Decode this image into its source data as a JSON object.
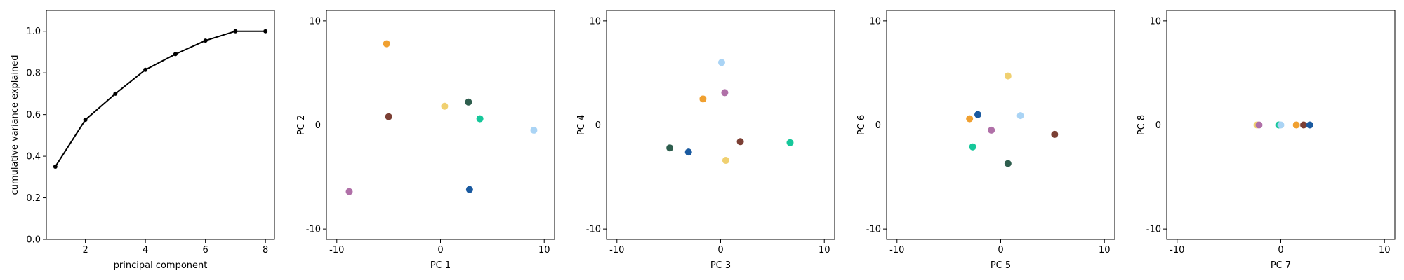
{
  "chart_data": [
    {
      "type": "line",
      "title": "",
      "xlabel": "principal component",
      "ylabel": "cumulative variance explained",
      "xlim": [
        0.7,
        8.3
      ],
      "ylim": [
        0.0,
        1.1
      ],
      "xticks": [
        2,
        4,
        6,
        8
      ],
      "yticks": [
        0.0,
        0.2,
        0.4,
        0.6,
        0.8,
        1.0
      ],
      "x": [
        1,
        2,
        3,
        4,
        5,
        6,
        7,
        8
      ],
      "y": [
        0.35,
        0.575,
        0.7,
        0.815,
        0.89,
        0.955,
        1.0,
        1.0
      ],
      "line_color": "#000000",
      "grid": false
    },
    {
      "type": "scatter",
      "xlabel": "PC 1",
      "ylabel": "PC 2",
      "xlim": [
        -11,
        11
      ],
      "ylim": [
        -11,
        11
      ],
      "xticks": [
        -10,
        0,
        10
      ],
      "yticks": [
        -10,
        0,
        10
      ],
      "points": [
        {
          "x": -5.2,
          "y": 7.8,
          "color": "#f0a030"
        },
        {
          "x": -5.0,
          "y": 0.8,
          "color": "#7b3f34"
        },
        {
          "x": 0.4,
          "y": 1.8,
          "color": "#f0d070"
        },
        {
          "x": 2.7,
          "y": 2.2,
          "color": "#2e5e4e"
        },
        {
          "x": 3.8,
          "y": 0.6,
          "color": "#16c79a"
        },
        {
          "x": 9.0,
          "y": -0.5,
          "color": "#aad4f5"
        },
        {
          "x": -8.8,
          "y": -6.4,
          "color": "#b070a8"
        },
        {
          "x": 2.8,
          "y": -6.2,
          "color": "#1a5aa0"
        }
      ],
      "grid": false
    },
    {
      "type": "scatter",
      "xlabel": "PC 3",
      "ylabel": "PC 4",
      "xlim": [
        -11,
        11
      ],
      "ylim": [
        -11,
        11
      ],
      "xticks": [
        -10,
        0,
        10
      ],
      "yticks": [
        -10,
        0,
        10
      ],
      "points": [
        {
          "x": 0.1,
          "y": 6.0,
          "color": "#aad4f5"
        },
        {
          "x": 0.4,
          "y": 3.1,
          "color": "#b070a8"
        },
        {
          "x": -1.7,
          "y": 2.5,
          "color": "#f0a030"
        },
        {
          "x": -4.9,
          "y": -2.2,
          "color": "#2e5e4e"
        },
        {
          "x": -3.1,
          "y": -2.6,
          "color": "#1a5aa0"
        },
        {
          "x": 1.9,
          "y": -1.6,
          "color": "#7b3f34"
        },
        {
          "x": 6.7,
          "y": -1.7,
          "color": "#16c79a"
        },
        {
          "x": 0.5,
          "y": -3.4,
          "color": "#f0d070"
        }
      ],
      "grid": false
    },
    {
      "type": "scatter",
      "xlabel": "PC 5",
      "ylabel": "PC 6",
      "xlim": [
        -11,
        11
      ],
      "ylim": [
        -11,
        11
      ],
      "xticks": [
        -10,
        0,
        10
      ],
      "yticks": [
        -10,
        0,
        10
      ],
      "points": [
        {
          "x": 0.7,
          "y": 4.7,
          "color": "#f0d070"
        },
        {
          "x": -2.2,
          "y": 1.0,
          "color": "#1a5aa0"
        },
        {
          "x": -3.0,
          "y": 0.6,
          "color": "#f0a030"
        },
        {
          "x": 1.9,
          "y": 0.9,
          "color": "#aad4f5"
        },
        {
          "x": -0.9,
          "y": -0.5,
          "color": "#b070a8"
        },
        {
          "x": 5.2,
          "y": -0.9,
          "color": "#7b3f34"
        },
        {
          "x": -2.7,
          "y": -2.1,
          "color": "#16c79a"
        },
        {
          "x": 0.7,
          "y": -3.7,
          "color": "#2e5e4e"
        }
      ],
      "grid": false
    },
    {
      "type": "scatter",
      "xlabel": "PC 7",
      "ylabel": "PC 8",
      "xlim": [
        -11,
        11
      ],
      "ylim": [
        -11,
        11
      ],
      "xticks": [
        -10,
        0,
        10
      ],
      "yticks": [
        -10,
        0,
        10
      ],
      "points": [
        {
          "x": -2.3,
          "y": 0.0,
          "color": "#f0d070"
        },
        {
          "x": -2.1,
          "y": 0.0,
          "color": "#b070a8"
        },
        {
          "x": -0.2,
          "y": 0.0,
          "color": "#16c79a"
        },
        {
          "x": 0.0,
          "y": 0.0,
          "color": "#aad4f5"
        },
        {
          "x": 1.5,
          "y": 0.0,
          "color": "#f0a030"
        },
        {
          "x": 2.2,
          "y": 0.0,
          "color": "#7b3f34"
        },
        {
          "x": 2.8,
          "y": 0.0,
          "color": "#1a5aa0"
        }
      ],
      "grid": false
    }
  ]
}
